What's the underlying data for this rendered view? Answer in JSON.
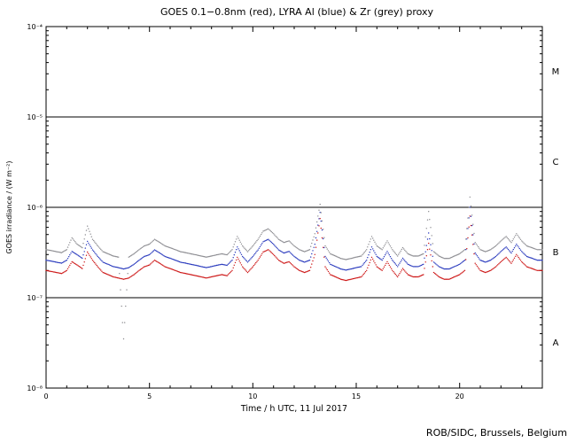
{
  "footer": "ROB/SIDC, Brussels, Belgium",
  "chart_data": {
    "type": "scatter",
    "title": "GOES 0.1−0.8nm (red), LYRA Al (blue) & Zr (grey) proxy",
    "xlabel": "Time / h UTC, 11 Jul 2017",
    "ylabel": "GOES irradiance / (W m⁻²)",
    "xlim": [
      0,
      24
    ],
    "ylim": [
      1e-08,
      0.0001
    ],
    "grid": false,
    "legend": "colors named in title",
    "x_major_ticks": [
      0,
      5,
      10,
      15,
      20
    ],
    "x_minor_step": 1,
    "y_ticks": [
      {
        "label": "10⁻⁸",
        "value": 1e-08
      },
      {
        "label": "10⁻⁷",
        "value": 1e-07
      },
      {
        "label": "10⁻⁶",
        "value": 1e-06
      },
      {
        "label": "10⁻⁵",
        "value": 1e-05
      },
      {
        "label": "10⁻⁴",
        "value": 0.0001
      }
    ],
    "class_lines": [
      1e-07,
      1e-06,
      1e-05
    ],
    "flare_classes": [
      {
        "label": "A",
        "value": 3.16e-08
      },
      {
        "label": "B",
        "value": 3.16e-07
      },
      {
        "label": "C",
        "value": 3.16e-06
      },
      {
        "label": "M",
        "value": 3.16e-05
      }
    ],
    "unit_scale": 1e-07,
    "unit_note": "series values are in units of 1e-7 W m^-2",
    "x": [
      0,
      0.25,
      0.5,
      0.75,
      1,
      1.25,
      1.5,
      1.75,
      2,
      2.25,
      2.5,
      2.75,
      3,
      3.25,
      3.5,
      3.75,
      4,
      4.25,
      4.5,
      4.75,
      5,
      5.25,
      5.5,
      5.75,
      6,
      6.25,
      6.5,
      6.75,
      7,
      7.25,
      7.5,
      7.75,
      8,
      8.25,
      8.5,
      8.75,
      9,
      9.25,
      9.5,
      9.75,
      10,
      10.25,
      10.5,
      10.75,
      11,
      11.25,
      11.5,
      11.75,
      12,
      12.25,
      12.5,
      12.75,
      13,
      13.25,
      13.5,
      13.75,
      14,
      14.25,
      14.5,
      14.75,
      15,
      15.25,
      15.5,
      15.75,
      16,
      16.25,
      16.5,
      16.75,
      17,
      17.25,
      17.5,
      17.75,
      18,
      18.25,
      18.5,
      18.75,
      19,
      19.25,
      19.5,
      19.75,
      20,
      20.25,
      20.5,
      20.75,
      21,
      21.25,
      21.5,
      21.75,
      22,
      22.25,
      22.5,
      22.75,
      23,
      23.25,
      23.5,
      23.75,
      24
    ],
    "series": [
      {
        "name": "GOES 0.1-0.8nm",
        "color": "#cc1111",
        "values": [
          2.0,
          1.95,
          1.9,
          1.85,
          2.0,
          2.5,
          2.3,
          2.1,
          3.2,
          2.6,
          2.2,
          1.9,
          1.8,
          1.7,
          1.65,
          1.6,
          1.65,
          1.8,
          2.0,
          2.2,
          2.3,
          2.6,
          2.4,
          2.2,
          2.1,
          2.0,
          1.9,
          1.85,
          1.8,
          1.75,
          1.7,
          1.65,
          1.7,
          1.75,
          1.8,
          1.75,
          2.0,
          2.8,
          2.2,
          1.9,
          2.2,
          2.6,
          3.2,
          3.4,
          3.0,
          2.6,
          2.4,
          2.5,
          2.2,
          2.0,
          1.9,
          2.0,
          3.0,
          7.5,
          2.2,
          1.8,
          1.7,
          1.6,
          1.55,
          1.6,
          1.65,
          1.7,
          2.0,
          2.8,
          2.2,
          2.0,
          2.5,
          2.0,
          1.7,
          2.1,
          1.8,
          1.7,
          1.7,
          1.8,
          4.0,
          1.9,
          1.7,
          1.6,
          1.6,
          1.7,
          1.8,
          2.0,
          8.0,
          2.4,
          2.0,
          1.9,
          2.0,
          2.2,
          2.5,
          2.8,
          2.4,
          3.0,
          2.5,
          2.2,
          2.1,
          2.0,
          2.0
        ]
      },
      {
        "name": "LYRA Al proxy",
        "color": "#2233bb",
        "values": [
          2.6,
          2.54,
          2.47,
          2.41,
          2.6,
          3.25,
          2.99,
          2.73,
          4.2,
          3.38,
          2.86,
          2.47,
          2.34,
          2.21,
          2.15,
          2.08,
          2.15,
          2.34,
          2.6,
          2.86,
          2.99,
          3.38,
          3.12,
          2.86,
          2.73,
          2.6,
          2.47,
          2.41,
          2.34,
          2.28,
          2.21,
          2.15,
          2.21,
          2.28,
          2.34,
          2.28,
          2.6,
          3.64,
          2.86,
          2.47,
          2.86,
          3.38,
          4.16,
          4.42,
          3.9,
          3.38,
          3.12,
          3.25,
          2.86,
          2.6,
          2.47,
          2.6,
          3.9,
          8.8,
          2.86,
          2.34,
          2.21,
          2.08,
          2.02,
          2.08,
          2.15,
          2.21,
          2.6,
          3.64,
          2.86,
          2.6,
          3.25,
          2.6,
          2.21,
          2.73,
          2.34,
          2.21,
          2.21,
          2.34,
          5.2,
          2.47,
          2.21,
          2.08,
          2.08,
          2.21,
          2.34,
          2.6,
          10.0,
          3.12,
          2.6,
          2.47,
          2.6,
          2.86,
          3.25,
          3.64,
          3.12,
          3.9,
          3.25,
          2.86,
          2.73,
          2.6,
          2.6
        ]
      },
      {
        "name": "LYRA Zr proxy",
        "color": "#8a8a8f",
        "values": [
          3.4,
          3.32,
          3.23,
          3.15,
          3.4,
          4.6,
          3.91,
          3.57,
          6.2,
          4.42,
          3.74,
          3.23,
          3.06,
          2.89,
          2.81,
          0.35,
          2.81,
          3.06,
          3.4,
          3.74,
          3.91,
          4.42,
          4.08,
          3.74,
          3.57,
          3.4,
          3.23,
          3.15,
          3.06,
          2.98,
          2.89,
          2.81,
          2.89,
          2.98,
          3.06,
          2.98,
          3.4,
          4.76,
          3.74,
          3.23,
          3.74,
          4.42,
          5.44,
          5.78,
          5.1,
          4.42,
          4.08,
          4.25,
          3.74,
          3.4,
          3.23,
          3.4,
          5.1,
          10.8,
          3.74,
          3.06,
          2.89,
          2.72,
          2.64,
          2.72,
          2.81,
          2.89,
          3.4,
          4.76,
          3.74,
          3.4,
          4.25,
          3.4,
          2.89,
          3.57,
          3.06,
          2.89,
          2.89,
          3.06,
          9.0,
          3.23,
          2.89,
          2.72,
          2.72,
          2.89,
          3.06,
          3.4,
          13.0,
          4.08,
          3.4,
          3.23,
          3.4,
          3.74,
          4.25,
          4.76,
          4.08,
          5.1,
          4.25,
          3.74,
          3.57,
          3.4,
          3.4
        ]
      }
    ]
  }
}
